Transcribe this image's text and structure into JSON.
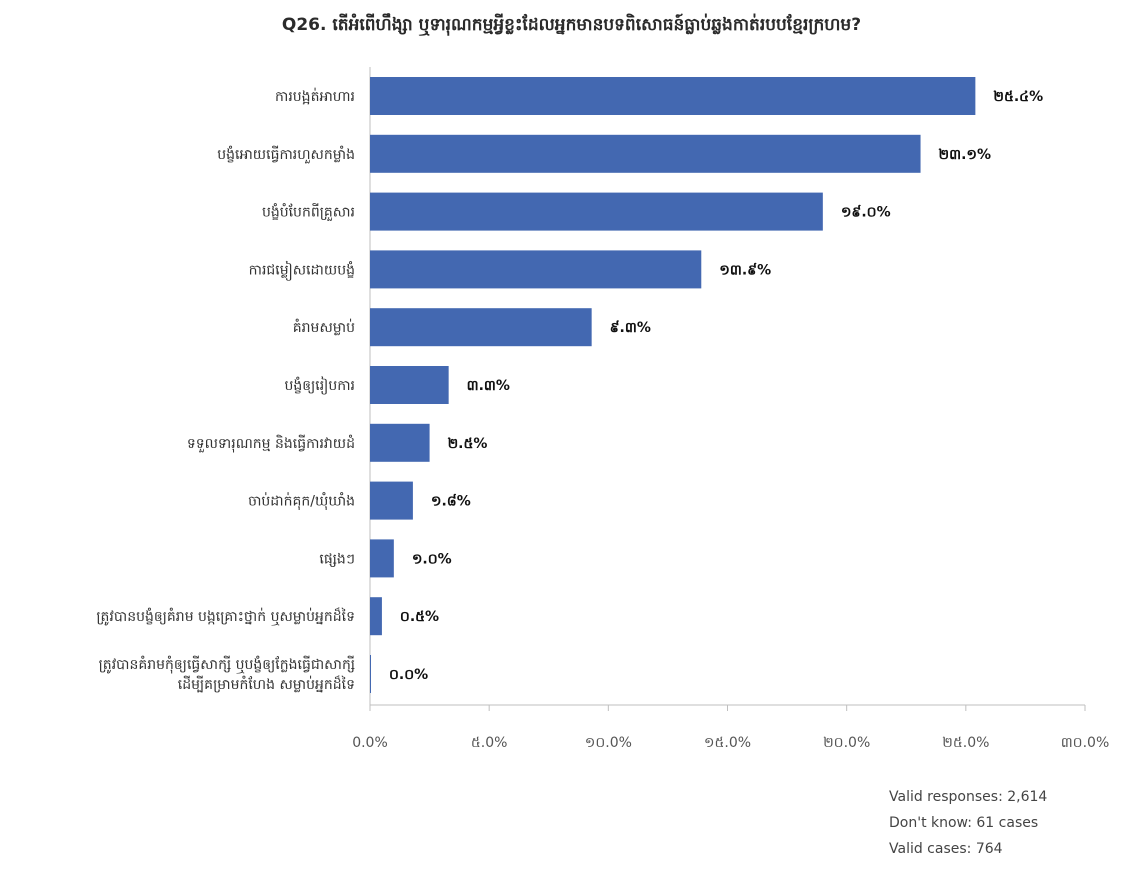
{
  "chart_data": {
    "type": "bar",
    "orientation": "horizontal",
    "title": "Q26. តើអំពើហឹង្សា ឬទារុណកម្មអ្វីខ្លះដែលអ្នកមានបទពិសោធន៍ធ្លាប់ឆ្លងកាត់របបខ្មែរក្រហម?",
    "categories": [
      [
        "ការបង្អត់អាហារ"
      ],
      [
        "បង្ខំអោយធ្វើការហួសកម្លាំង"
      ],
      [
        "បង្ខំបំបែកពីគ្រួសារ"
      ],
      [
        "ការជម្លៀសដោយបង្ខំ"
      ],
      [
        "គំរាមសម្លាប់"
      ],
      [
        "បង្ខំឲ្យរៀបការ"
      ],
      [
        "ទទួលទារុណកម្ម និងធ្វើការវាយដំ"
      ],
      [
        "ចាប់ដាក់គុក/ឃុំឃាំង"
      ],
      [
        "ផ្សេងៗ"
      ],
      [
        "ត្រូវបានបង្ខំឲ្យគំរាម បង្កគ្រោះថ្នាក់ ឬសម្លាប់អ្នកដ៏ទៃ"
      ],
      [
        "ត្រូវបានគំរាមកុំឲ្យធ្វើសាក្សី ឬបង្ខំឲ្យក្លែងធ្វើជាសាក្សី",
        "ដើម្បីគម្រាមកំហែង សម្លាប់អ្នកដ៏ទៃ"
      ]
    ],
    "values": [
      25.4,
      23.1,
      19.0,
      13.9,
      9.3,
      3.3,
      2.5,
      1.8,
      1.0,
      0.5,
      0.0
    ],
    "value_labels": [
      "២៥.៤%",
      "២៣.១%",
      "១៩.០%",
      "១៣.៩%",
      "៩.៣%",
      "៣.៣%",
      "២.៥%",
      "១.៨%",
      "១.០%",
      "០.៥%",
      "០.០%"
    ],
    "xlim": [
      0,
      30
    ],
    "ticks": [
      0,
      5,
      10,
      15,
      20,
      25,
      30
    ],
    "tick_labels": [
      "0.0%",
      "៥.0%",
      "១០.0%",
      "១៥.0%",
      "២០.0%",
      "២៥.0%",
      "៣០.0%"
    ],
    "bar_color": "#4368b1",
    "grid": false,
    "legend": false
  },
  "notes": [
    "Valid responses: 2,614",
    "Don't know: 61 cases",
    "Valid cases: 764"
  ]
}
